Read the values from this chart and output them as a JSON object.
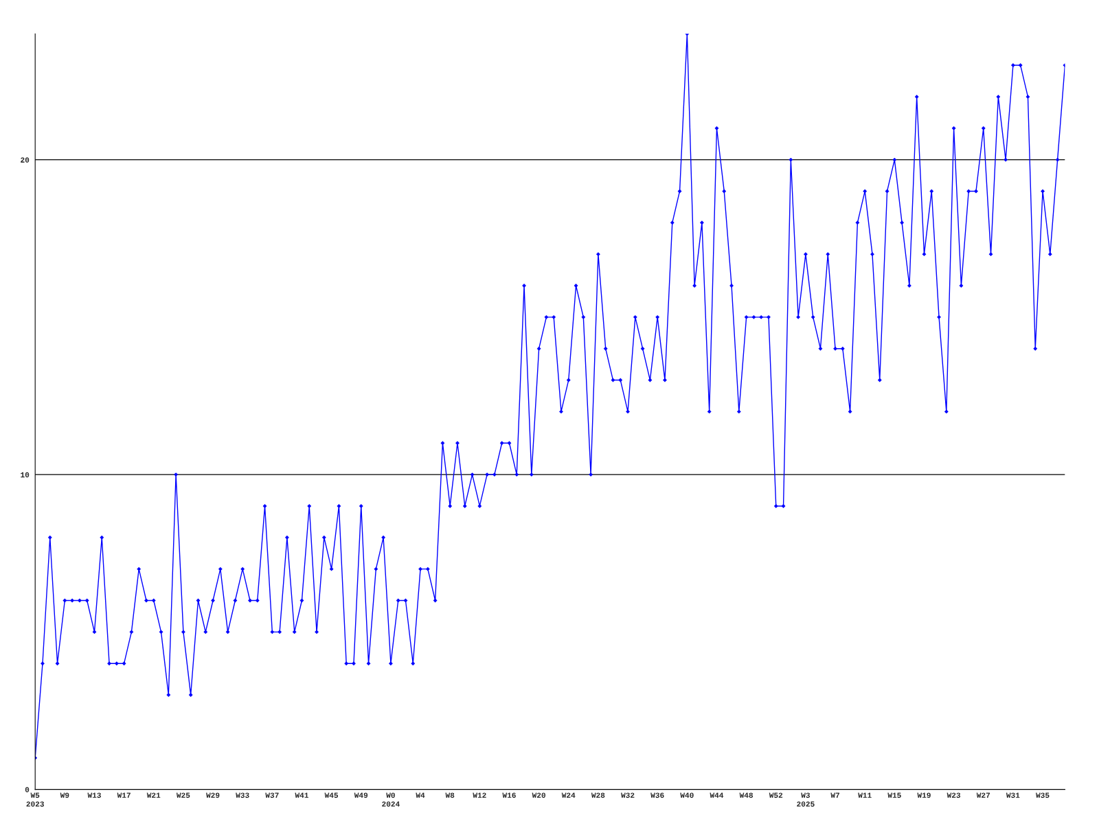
{
  "chart_data": {
    "type": "line",
    "categories": [
      "W5\n2023",
      null,
      null,
      null,
      "W9",
      null,
      null,
      null,
      "W13",
      null,
      null,
      null,
      "W17",
      null,
      null,
      null,
      "W21",
      null,
      null,
      null,
      "W25",
      null,
      null,
      null,
      "W29",
      null,
      null,
      null,
      "W33",
      null,
      null,
      null,
      "W37",
      null,
      null,
      null,
      "W41",
      null,
      null,
      null,
      "W45",
      null,
      null,
      null,
      "W49",
      null,
      null,
      null,
      "W0\n2024",
      null,
      null,
      null,
      "W4",
      null,
      null,
      null,
      "W8",
      null,
      null,
      null,
      "W12",
      null,
      null,
      null,
      "W16",
      null,
      null,
      null,
      "W20",
      null,
      null,
      null,
      "W24",
      null,
      null,
      null,
      "W28",
      null,
      null,
      null,
      "W32",
      null,
      null,
      null,
      "W36",
      null,
      null,
      null,
      "W40",
      null,
      null,
      null,
      "W44",
      null,
      null,
      null,
      "W48",
      null,
      null,
      null,
      "W52",
      null,
      null,
      null,
      "W3\n2025",
      null,
      null,
      null,
      "W7",
      null,
      null,
      null,
      "W11",
      null,
      null,
      null,
      "W15",
      null,
      null,
      null,
      "W19",
      null,
      null,
      null,
      "W23",
      null,
      null,
      null,
      "W27",
      null,
      null,
      null,
      "W31",
      null,
      null,
      null,
      "W35",
      null,
      null,
      null
    ],
    "series": [
      {
        "color": "#0000ff",
        "values": [
          1,
          4,
          8,
          4,
          6,
          6,
          6,
          6,
          5,
          8,
          4,
          4,
          4,
          5,
          7,
          6,
          6,
          5,
          3,
          10,
          5,
          3,
          6,
          5,
          6,
          7,
          5,
          6,
          7,
          6,
          6,
          9,
          5,
          5,
          8,
          5,
          6,
          9,
          5,
          8,
          7,
          9,
          4,
          4,
          9,
          4,
          7,
          8,
          4,
          6,
          6,
          4,
          7,
          7,
          6,
          11,
          9,
          11,
          9,
          10,
          9,
          10,
          10,
          11,
          11,
          10,
          16,
          10,
          14,
          15,
          15,
          12,
          13,
          16,
          15,
          10,
          17,
          14,
          13,
          13,
          12,
          15,
          14,
          13,
          15,
          13,
          18,
          19,
          24,
          16,
          18,
          12,
          21,
          19,
          16,
          12,
          15,
          15,
          15,
          15,
          9,
          9,
          20,
          15,
          17,
          15,
          14,
          17,
          14,
          14,
          12,
          18,
          19,
          17,
          13,
          19,
          20,
          18,
          16,
          22,
          17,
          19,
          15,
          12,
          21,
          16,
          19,
          19,
          21,
          17,
          22,
          20,
          23,
          23,
          22,
          14,
          19,
          17,
          20,
          23
        ]
      }
    ],
    "ylim": [
      0,
      24
    ],
    "yticks": [
      0,
      10,
      20
    ],
    "grid": "y",
    "marker": "diamond",
    "line_style": "solid"
  }
}
